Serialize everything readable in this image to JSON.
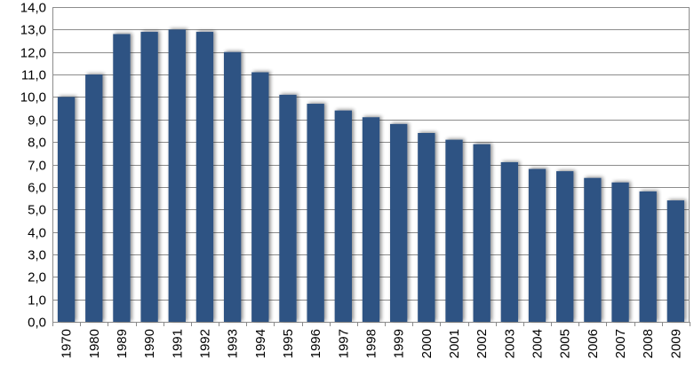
{
  "chart_data": {
    "type": "bar",
    "title": "",
    "xlabel": "",
    "ylabel": "",
    "categories": [
      "1970",
      "1980",
      "1989",
      "1990",
      "1991",
      "1992",
      "1993",
      "1994",
      "1995",
      "1996",
      "1997",
      "1998",
      "1999",
      "2000",
      "2001",
      "2002",
      "2003",
      "2004",
      "2005",
      "2006",
      "2007",
      "2008",
      "2009"
    ],
    "values": [
      10.0,
      11.0,
      12.8,
      12.9,
      13.0,
      12.9,
      12.0,
      11.1,
      10.1,
      9.7,
      9.4,
      9.1,
      8.8,
      8.4,
      8.1,
      7.9,
      7.1,
      6.8,
      6.7,
      6.4,
      6.2,
      5.8,
      5.4
    ],
    "ylim": [
      0,
      14
    ],
    "yticks": [
      0,
      1,
      2,
      3,
      4,
      5,
      6,
      7,
      8,
      9,
      10,
      11,
      12,
      13,
      14
    ],
    "ytick_labels": [
      "0,0",
      "1,0",
      "2,0",
      "3,0",
      "4,0",
      "5,0",
      "6,0",
      "7,0",
      "8,0",
      "9,0",
      "10,0",
      "11,0",
      "12,0",
      "13,0",
      "14,0"
    ],
    "grid": true,
    "legend": "none",
    "bar_color": "#2E5283",
    "grid_color": "#8C8C8C"
  }
}
